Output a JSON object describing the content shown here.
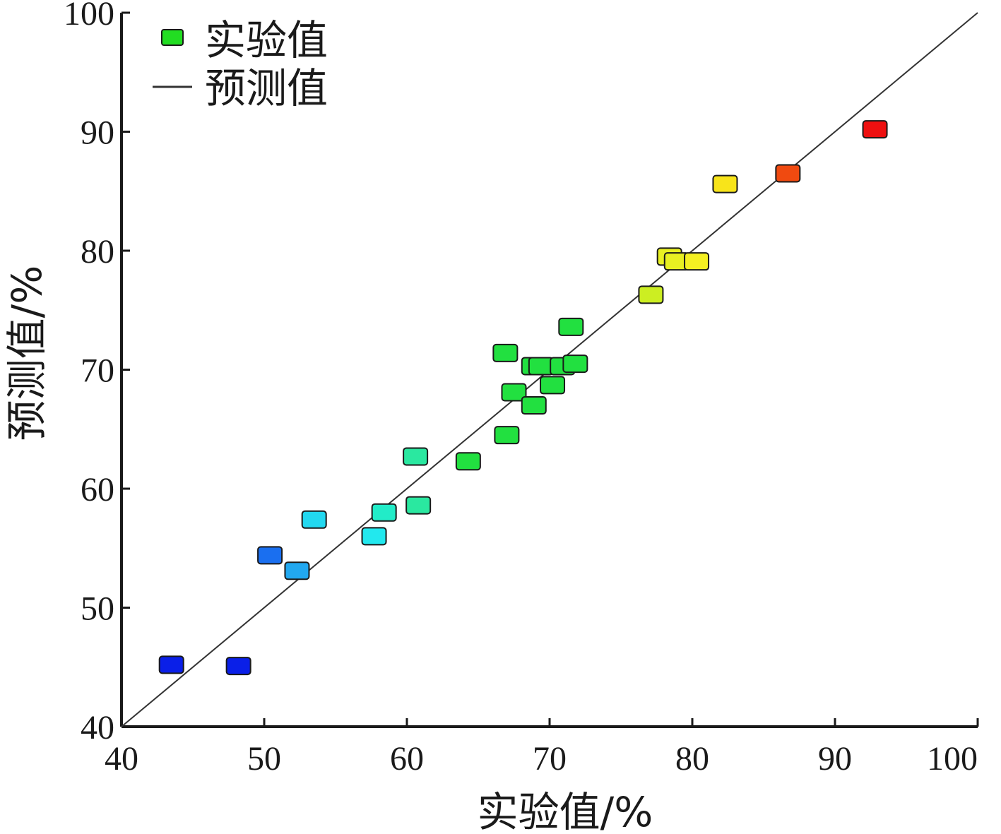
{
  "chart_data": {
    "type": "scatter",
    "xlabel": "实验值/%",
    "ylabel": "预测值/%",
    "xlim": [
      40,
      100
    ],
    "ylim": [
      40,
      100
    ],
    "xticks": [
      "40",
      "50",
      "60",
      "70",
      "80",
      "90",
      "100"
    ],
    "yticks": [
      "40",
      "50",
      "60",
      "70",
      "80",
      "90",
      "100"
    ],
    "grid": false,
    "legend_position": "top-left",
    "legend": [
      {
        "label": "实验值",
        "marker": "square",
        "color": "#22dd22"
      },
      {
        "label": "预测值",
        "marker": "line",
        "color": "#333333"
      }
    ],
    "series": [
      {
        "name": "实验值",
        "points": [
          {
            "x": 43.5,
            "y": 45.2,
            "color": "#0a1fe8"
          },
          {
            "x": 48.2,
            "y": 45.1,
            "color": "#0a1fe8"
          },
          {
            "x": 50.4,
            "y": 54.4,
            "color": "#1a6ff0"
          },
          {
            "x": 52.3,
            "y": 53.1,
            "color": "#22a8f0"
          },
          {
            "x": 53.5,
            "y": 57.4,
            "color": "#22d8f0"
          },
          {
            "x": 57.7,
            "y": 56.0,
            "color": "#22e8ee"
          },
          {
            "x": 58.4,
            "y": 58.0,
            "color": "#22ecc8"
          },
          {
            "x": 60.6,
            "y": 62.7,
            "color": "#2ae8a0"
          },
          {
            "x": 60.8,
            "y": 58.6,
            "color": "#2ae8a0"
          },
          {
            "x": 64.3,
            "y": 62.3,
            "color": "#22e040"
          },
          {
            "x": 67.0,
            "y": 64.5,
            "color": "#22e040"
          },
          {
            "x": 66.9,
            "y": 71.4,
            "color": "#22e040"
          },
          {
            "x": 67.5,
            "y": 68.1,
            "color": "#22e040"
          },
          {
            "x": 68.9,
            "y": 67.0,
            "color": "#22e040"
          },
          {
            "x": 68.9,
            "y": 70.3,
            "color": "#22e040"
          },
          {
            "x": 69.4,
            "y": 70.3,
            "color": "#22e040"
          },
          {
            "x": 70.2,
            "y": 68.7,
            "color": "#22e040"
          },
          {
            "x": 70.9,
            "y": 70.3,
            "color": "#22e040"
          },
          {
            "x": 71.8,
            "y": 70.5,
            "color": "#22e040"
          },
          {
            "x": 71.5,
            "y": 73.6,
            "color": "#22e040"
          },
          {
            "x": 77.1,
            "y": 76.3,
            "color": "#ccee22"
          },
          {
            "x": 78.4,
            "y": 79.5,
            "color": "#e8f022"
          },
          {
            "x": 78.9,
            "y": 79.1,
            "color": "#e8f022"
          },
          {
            "x": 80.3,
            "y": 79.1,
            "color": "#f4f022"
          },
          {
            "x": 82.3,
            "y": 85.6,
            "color": "#f8e41a"
          },
          {
            "x": 86.7,
            "y": 86.5,
            "color": "#f04a10"
          },
          {
            "x": 92.8,
            "y": 90.2,
            "color": "#ee1010"
          }
        ]
      },
      {
        "name": "预测值",
        "type": "line",
        "x": [
          40,
          100
        ],
        "y": [
          40,
          100
        ]
      }
    ]
  }
}
